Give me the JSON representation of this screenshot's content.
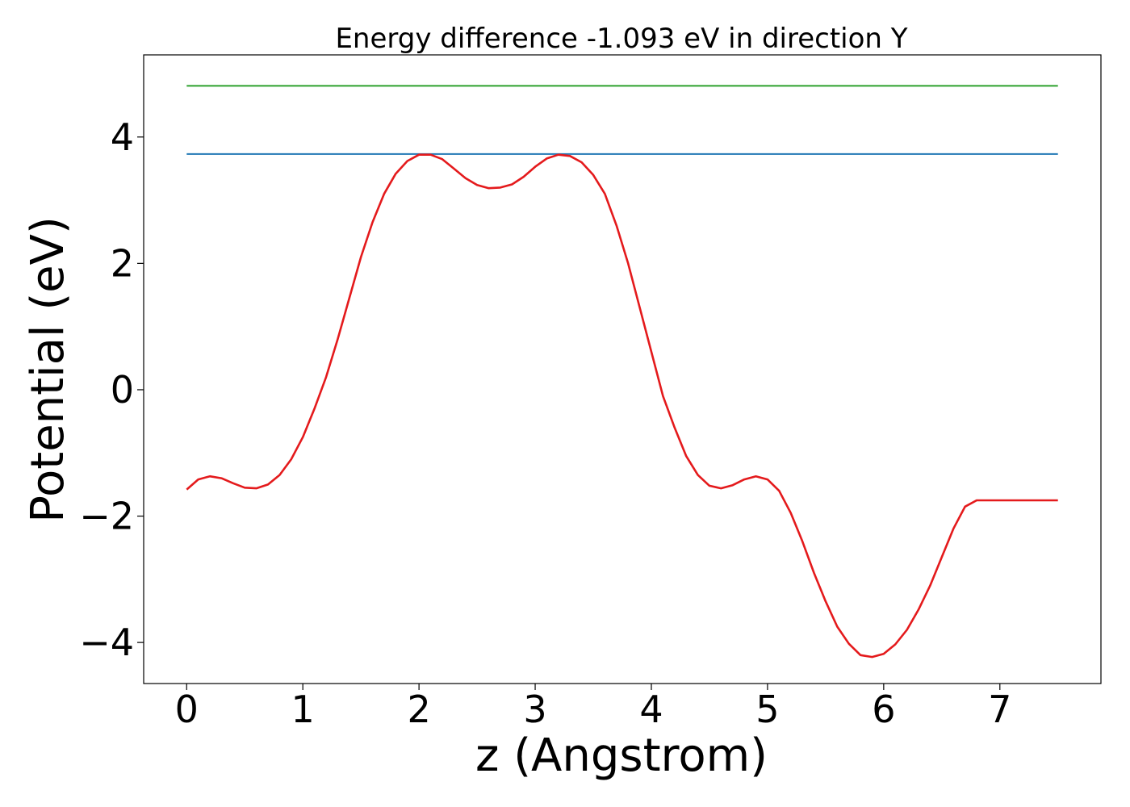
{
  "chart_data": {
    "type": "line",
    "title": "Energy difference -1.093 eV in direction Y",
    "xlabel": "z (Angstrom)",
    "ylabel": "Potential (eV)",
    "xlim": [
      -0.37,
      7.87
    ],
    "ylim": [
      -4.65,
      5.3
    ],
    "xticks": [
      0,
      1,
      2,
      3,
      4,
      5,
      6,
      7
    ],
    "yticks": [
      -4,
      -2,
      0,
      2,
      4
    ],
    "xtick_labels": [
      "0",
      "1",
      "2",
      "3",
      "4",
      "5",
      "6",
      "7"
    ],
    "ytick_labels": [
      "−4",
      "−2",
      "0",
      "2",
      "4"
    ],
    "grid": false,
    "series": [
      {
        "color": "#2ca02c",
        "x": [
          0,
          7.5
        ],
        "y": [
          4.81,
          4.81
        ]
      },
      {
        "color": "#1f77b4",
        "x": [
          0,
          7.5
        ],
        "y": [
          3.73,
          3.73
        ]
      },
      {
        "color": "#e41a1c",
        "x": [
          0,
          0.1,
          0.2,
          0.3,
          0.4,
          0.5,
          0.6,
          0.7,
          0.8,
          0.9,
          1.0,
          1.1,
          1.2,
          1.3,
          1.4,
          1.5,
          1.6,
          1.7,
          1.8,
          1.9,
          2.0,
          2.1,
          2.2,
          2.3,
          2.4,
          2.5,
          2.6,
          2.7,
          2.8,
          2.9,
          3.0,
          3.1,
          3.2,
          3.3,
          3.4,
          3.5,
          3.6,
          3.7,
          3.8,
          3.9,
          4.0,
          4.1,
          4.2,
          4.3,
          4.4,
          4.5,
          4.6,
          4.7,
          4.8,
          4.9,
          5.0,
          5.1,
          5.2,
          5.3,
          5.4,
          5.5,
          5.6,
          5.7,
          5.8,
          5.9,
          6.0,
          6.1,
          6.2,
          6.3,
          6.4,
          6.5,
          6.6,
          6.7,
          6.8,
          6.9,
          7.0,
          7.1,
          7.2,
          7.3,
          7.4,
          7.5
        ],
        "y": [
          -1.58,
          -1.42,
          -1.37,
          -1.4,
          -1.48,
          -1.55,
          -1.56,
          -1.5,
          -1.35,
          -1.1,
          -0.75,
          -0.3,
          0.2,
          0.8,
          1.45,
          2.1,
          2.65,
          3.1,
          3.42,
          3.62,
          3.72,
          3.72,
          3.65,
          3.5,
          3.35,
          3.24,
          3.19,
          3.2,
          3.25,
          3.37,
          3.53,
          3.66,
          3.72,
          3.7,
          3.6,
          3.4,
          3.1,
          2.6,
          2.0,
          1.3,
          0.6,
          -0.1,
          -0.6,
          -1.05,
          -1.35,
          -1.52,
          -1.56,
          -1.51,
          -1.42,
          -1.37,
          -1.42,
          -1.6,
          -1.95,
          -2.4,
          -2.9,
          -3.35,
          -3.75,
          -4.02,
          -4.2,
          -4.23,
          -4.18,
          -4.03,
          -3.8,
          -3.48,
          -3.1,
          -2.65,
          -2.2,
          -1.85,
          -1.75,
          -1.75,
          -1.75,
          -1.75,
          -1.75,
          -1.75,
          -1.75,
          -1.75
        ]
      }
    ]
  }
}
